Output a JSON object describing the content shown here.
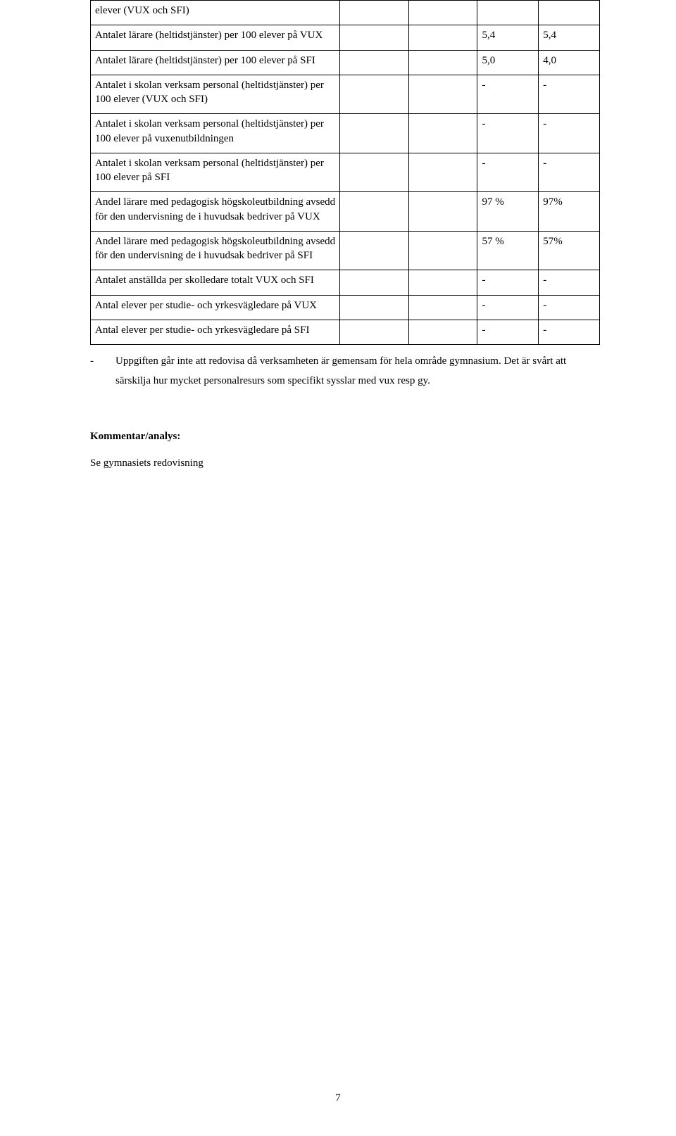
{
  "colors": {
    "text": "#000000",
    "background": "#ffffff",
    "border": "#000000"
  },
  "typography": {
    "family": "Palatino Linotype / Book Antiqua, serif",
    "body_size_pt": 11,
    "heading_weight": "bold"
  },
  "table": {
    "column_widths_pct": [
      49,
      13.5,
      13.5,
      12,
      12
    ],
    "border_color": "#000000",
    "rows": [
      {
        "label": "elever (VUX och SFI)",
        "c2": "",
        "c3": "",
        "c4": "",
        "c5": ""
      },
      {
        "label": "Antalet lärare (heltidstjänster) per 100 elever på VUX",
        "c2": "",
        "c3": "",
        "c4": "5,4",
        "c5": "5,4"
      },
      {
        "label": "Antalet lärare (heltidstjänster) per 100 elever på SFI",
        "c2": "",
        "c3": "",
        "c4": "5,0",
        "c5": "4,0"
      },
      {
        "label": "Antalet i skolan verksam personal (heltidstjänster) per 100 elever (VUX och SFI)",
        "c2": "",
        "c3": "",
        "c4": "-",
        "c5": "-"
      },
      {
        "label": "Antalet i skolan verksam personal (heltidstjänster) per 100 elever på vuxenutbildningen",
        "c2": "",
        "c3": "",
        "c4": "-",
        "c5": "-"
      },
      {
        "label": "Antalet i skolan verksam personal (heltidstjänster) per 100 elever på SFI",
        "c2": "",
        "c3": "",
        "c4": "-",
        "c5": "-"
      },
      {
        "label": "Andel lärare med pedagogisk högskoleutbildning avsedd för den undervisning de i huvudsak bedriver på VUX",
        "c2": "",
        "c3": "",
        "c4": "97 %",
        "c5": "97%"
      },
      {
        "label": "Andel lärare med pedagogisk högskoleutbildning avsedd för den undervisning de i huvudsak bedriver på SFI",
        "c2": "",
        "c3": "",
        "c4": "57 %",
        "c5": "57%"
      },
      {
        "label": "Antalet anställda per skolledare totalt VUX och SFI",
        "c2": "",
        "c3": "",
        "c4": "-",
        "c5": "-"
      },
      {
        "label": "Antal elever per studie- och yrkesvägledare på VUX",
        "c2": "",
        "c3": "",
        "c4": "-",
        "c5": "-"
      },
      {
        "label": "Antal elever per studie- och yrkesvägledare på SFI",
        "c2": "",
        "c3": "",
        "c4": "-",
        "c5": "-"
      }
    ]
  },
  "footnote": {
    "marker": "-",
    "text": "Uppgiften går inte att redovisa då verksamheten är gemensam för hela område gymnasium. Det är svårt att särskilja hur mycket personalresurs som specifikt sysslar med vux resp gy."
  },
  "section_heading": "Kommentar/analys:",
  "body_line": "Se gymnasiets redovisning",
  "page_number": "7"
}
